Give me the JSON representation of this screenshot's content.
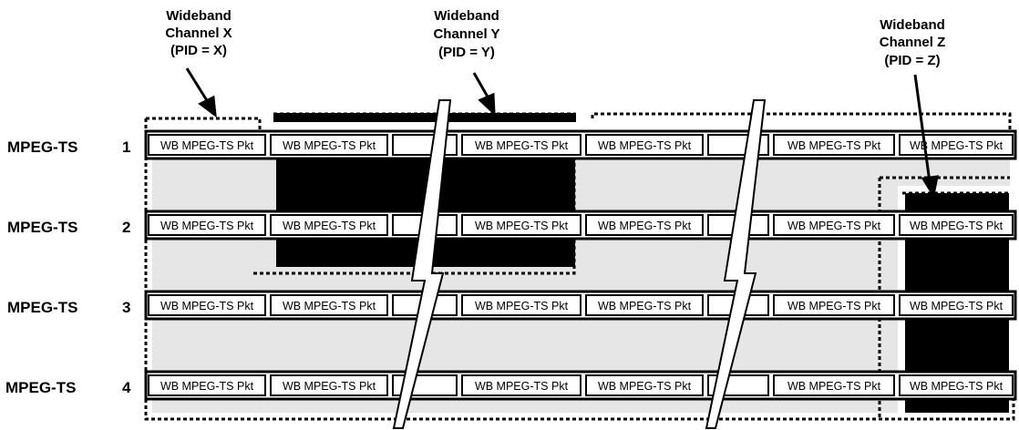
{
  "channels": [
    {
      "id": "x",
      "line1": "Wideband",
      "line2": "Channel  X",
      "line3": "(PID = X)"
    },
    {
      "id": "y",
      "line1": "Wideband",
      "line2": "Channel  Y",
      "line3": "(PID = Y)"
    },
    {
      "id": "z",
      "line1": "Wideband",
      "line2": "Channel  Z",
      "line3": "(PID = Z)"
    }
  ],
  "rows": [
    {
      "name": "MPEG-TS",
      "num": "1"
    },
    {
      "name": "MPEG-TS",
      "num": "2"
    },
    {
      "name": "MPEG-TS",
      "num": "3"
    },
    {
      "name": "MPEG-TS",
      "num": "4"
    }
  ],
  "packet_label": "WB MPEG-TS Pkt",
  "colors": {
    "background": "#ffffff",
    "light_fill": "#e6e6e6",
    "dark_fill": "#000000",
    "stroke": "#000000"
  }
}
